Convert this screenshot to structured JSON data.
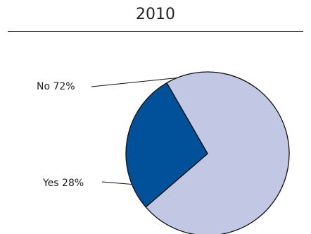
{
  "chart_data": {
    "type": "pie",
    "title": "2010",
    "slices": [
      {
        "label": "No",
        "value": 72,
        "display": "No 72%",
        "color": "#c2c8e3"
      },
      {
        "label": "Yes",
        "value": 28,
        "display": "Yes 28%",
        "color": "#00519a"
      }
    ]
  }
}
